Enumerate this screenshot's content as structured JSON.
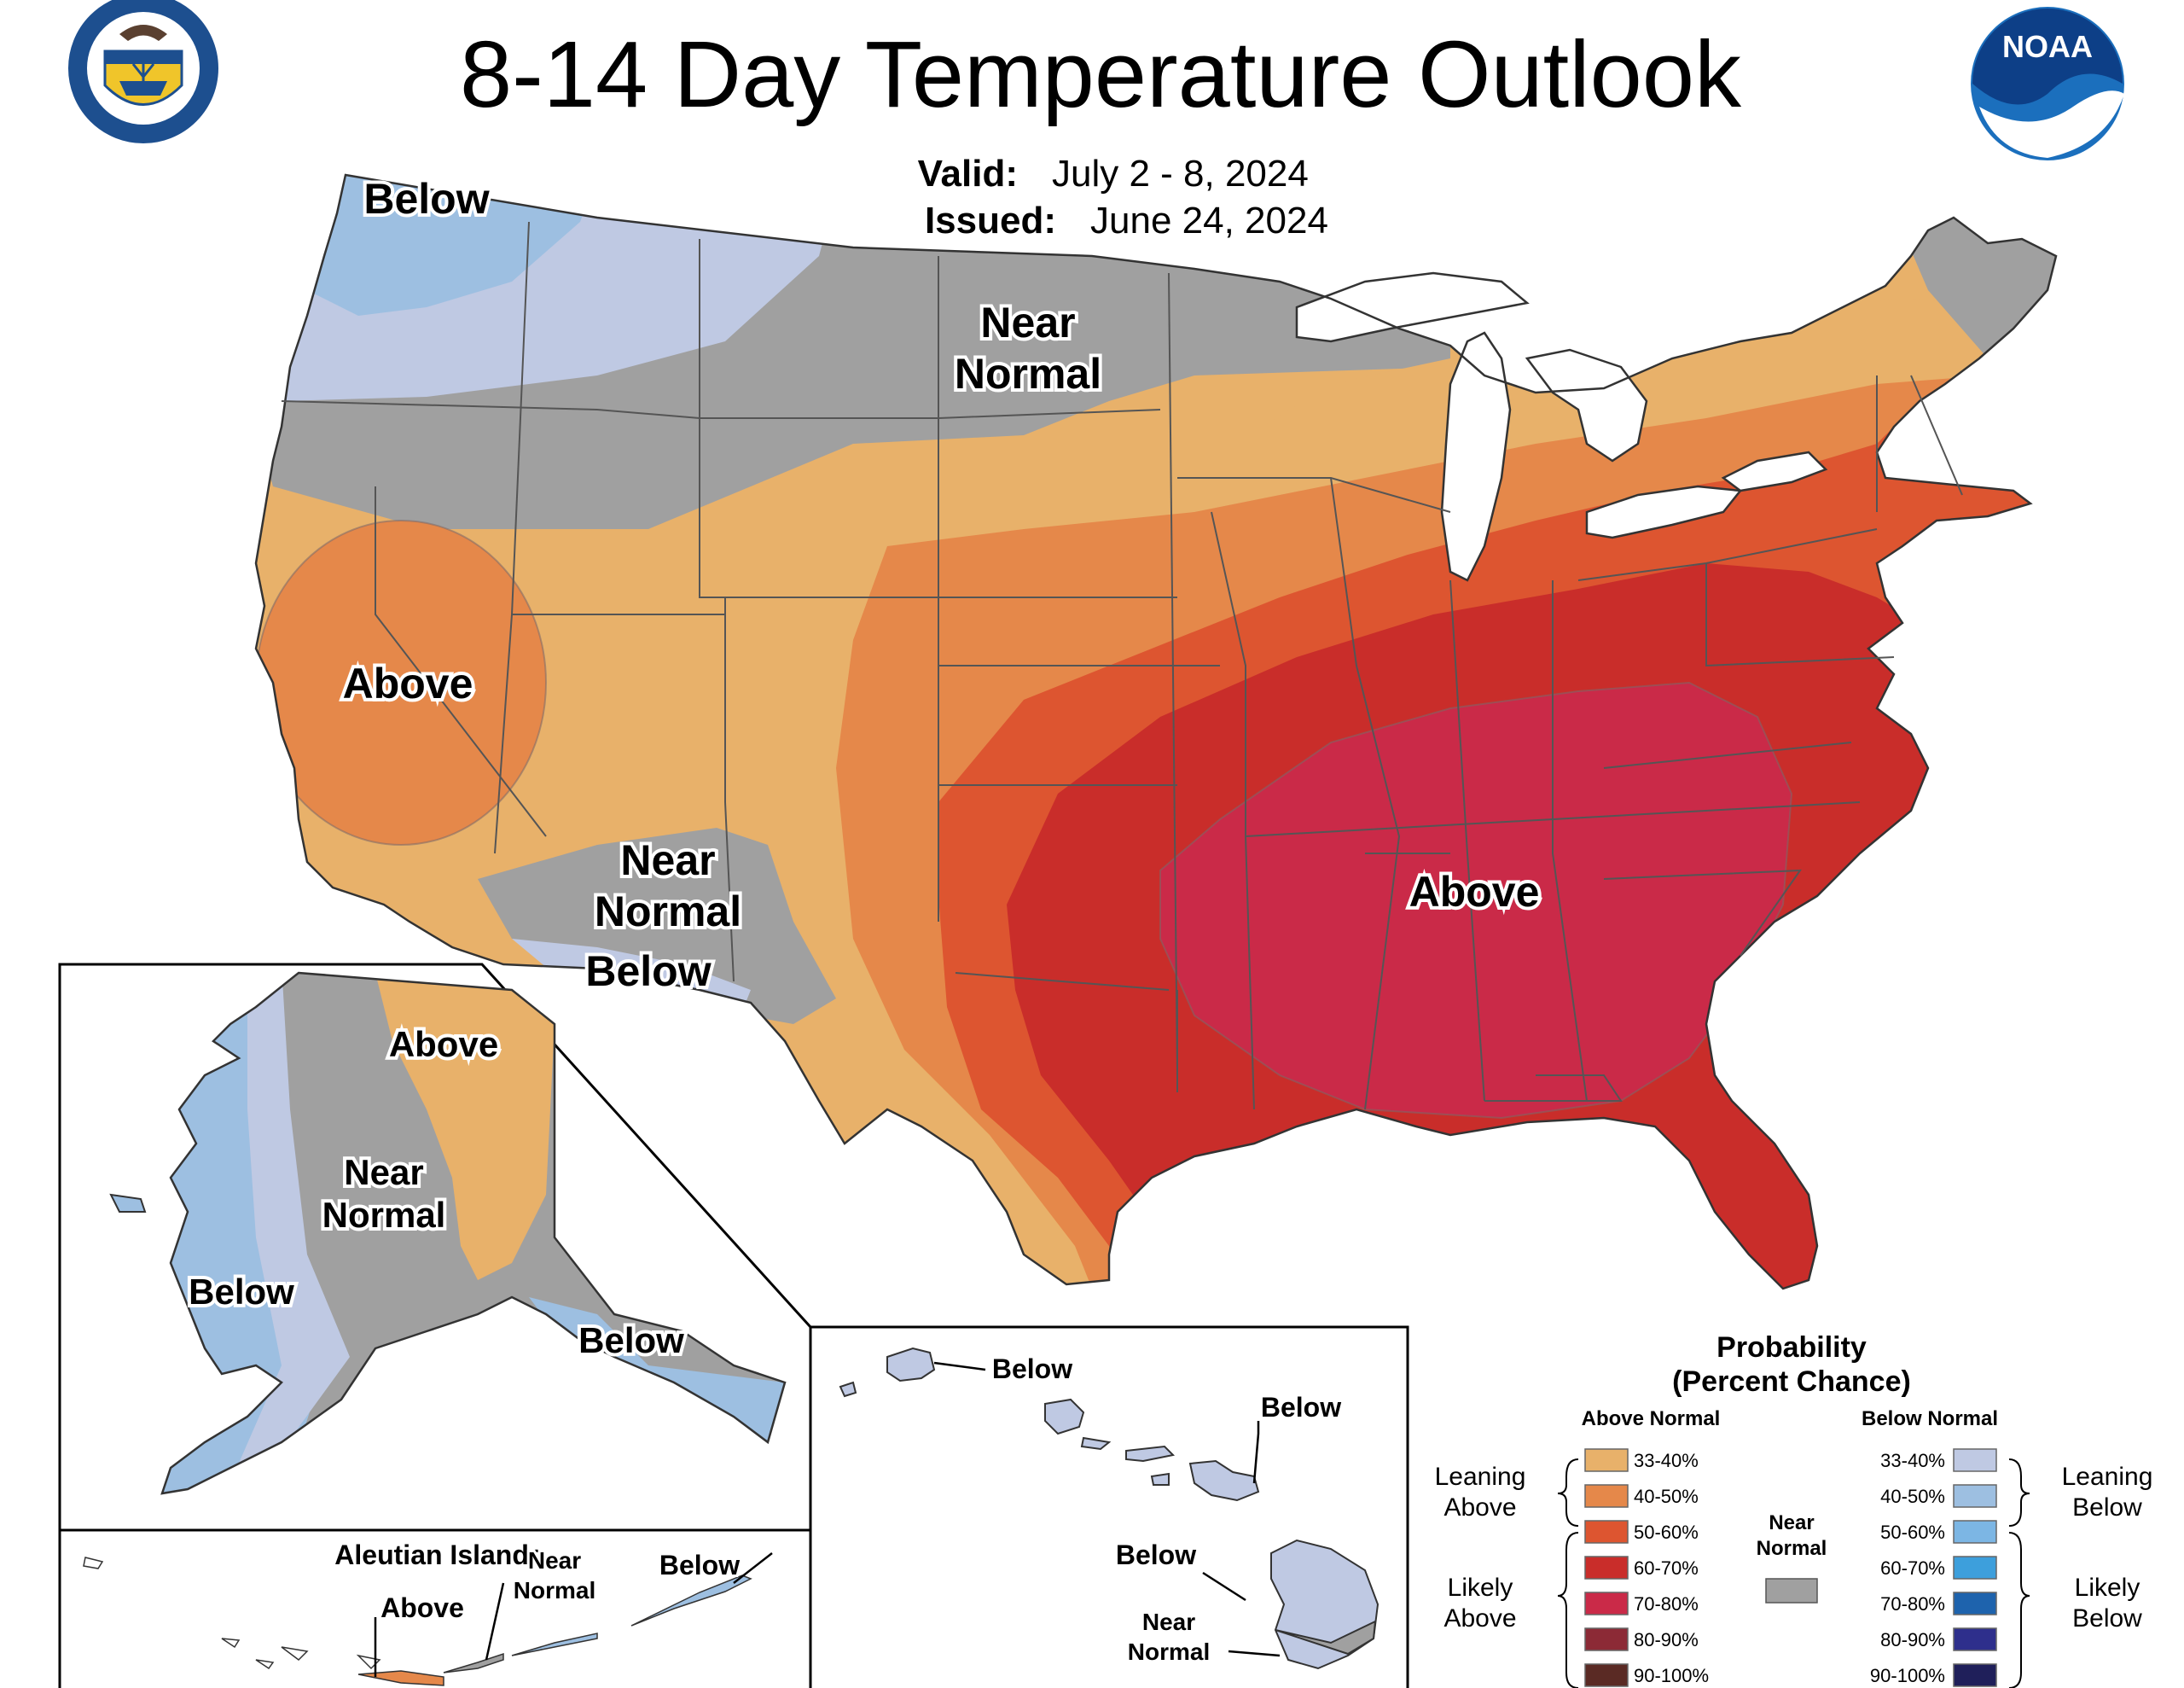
{
  "title": "8-14 Day Temperature Outlook",
  "valid_label": "Valid:",
  "valid_value": "July 2 - 8, 2024",
  "issued_label": "Issued:",
  "issued_value": "June 24, 2024",
  "logos": {
    "commerce_seal_text": "DEPARTMENT OF COMMERCE · UNITED STATES OF AMERICA",
    "noaa_text": "NOAA"
  },
  "map_labels": {
    "pnw_below": "Below",
    "north_near_1": "Near",
    "north_near_2": "Normal",
    "ca_above": "Above",
    "sw_near_1": "Near",
    "sw_near_2": "Normal",
    "az_below": "Below",
    "se_above": "Above"
  },
  "alaska_labels": {
    "north_above": "Above",
    "center_near_1": "Near",
    "center_near_2": "Normal",
    "west_below": "Below",
    "southeast_below": "Below"
  },
  "aleutian_labels": {
    "title": "Aleutian Islands",
    "above": "Above",
    "near_1": "Near",
    "near_2": "Normal",
    "below": "Below"
  },
  "hawaii_labels": {
    "kauai_below": "Below",
    "maui_below": "Below",
    "bigisland_below": "Below",
    "bigisland_near_1": "Near",
    "bigisland_near_2": "Normal"
  },
  "legend": {
    "title_1": "Probability",
    "title_2": "(Percent Chance)",
    "above_header": "Above Normal",
    "below_header": "Below Normal",
    "leaning_above_1": "Leaning",
    "leaning_above_2": "Above",
    "likely_above_1": "Likely",
    "likely_above_2": "Above",
    "leaning_below_1": "Leaning",
    "leaning_below_2": "Below",
    "likely_below_1": "Likely",
    "likely_below_2": "Below",
    "near_1": "Near",
    "near_2": "Normal",
    "near_color": "#a0a0a0",
    "above": [
      {
        "range": "33-40%",
        "color": "#e8b16a"
      },
      {
        "range": "40-50%",
        "color": "#e5884a"
      },
      {
        "range": "50-60%",
        "color": "#dd5530"
      },
      {
        "range": "60-70%",
        "color": "#c92d2a"
      },
      {
        "range": "70-80%",
        "color": "#ca2a48"
      },
      {
        "range": "80-90%",
        "color": "#8c2a36"
      },
      {
        "range": "90-100%",
        "color": "#5a2a24"
      }
    ],
    "below": [
      {
        "range": "33-40%",
        "color": "#bfc9e3"
      },
      {
        "range": "40-50%",
        "color": "#9dbfe1"
      },
      {
        "range": "50-60%",
        "color": "#7cb6e4"
      },
      {
        "range": "60-70%",
        "color": "#3d9fdc"
      },
      {
        "range": "70-80%",
        "color": "#1e63ad"
      },
      {
        "range": "80-90%",
        "color": "#2e2f8c"
      },
      {
        "range": "90-100%",
        "color": "#1f1f5a"
      }
    ]
  }
}
